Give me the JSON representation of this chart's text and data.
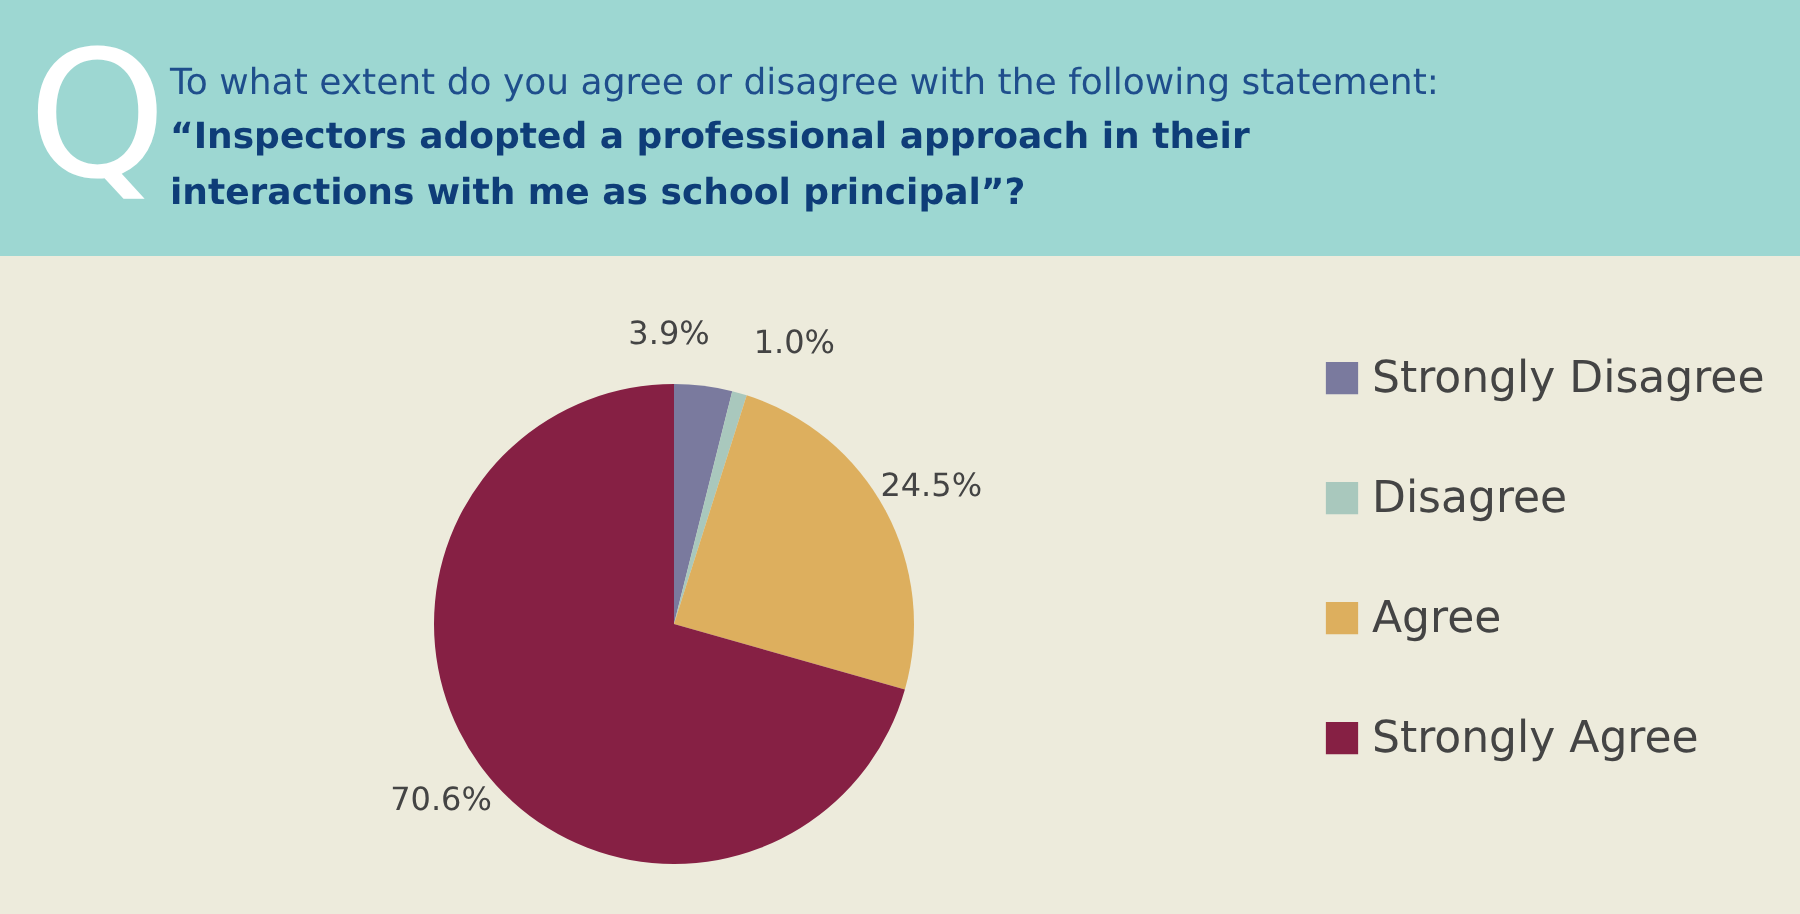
{
  "chart_data": {
    "type": "pie",
    "title": "To what extent do you agree or disagree with the following statement:",
    "subtitle": "“Inspectors adopted a professional approach in their interactions with me as school principal”?",
    "annotations": [
      "Q"
    ],
    "categories": [
      "Strongly Disagree",
      "Disagree",
      "Agree",
      "Strongly Agree"
    ],
    "values": [
      3.9,
      1.0,
      24.5,
      70.6
    ],
    "colors": [
      "#7a7a9e",
      "#a9c8bd",
      "#ddaf5e",
      "#862044"
    ],
    "value_labels": [
      "3.9%",
      "1.0%",
      "24.5%",
      "70.6%"
    ],
    "legend": "right"
  }
}
